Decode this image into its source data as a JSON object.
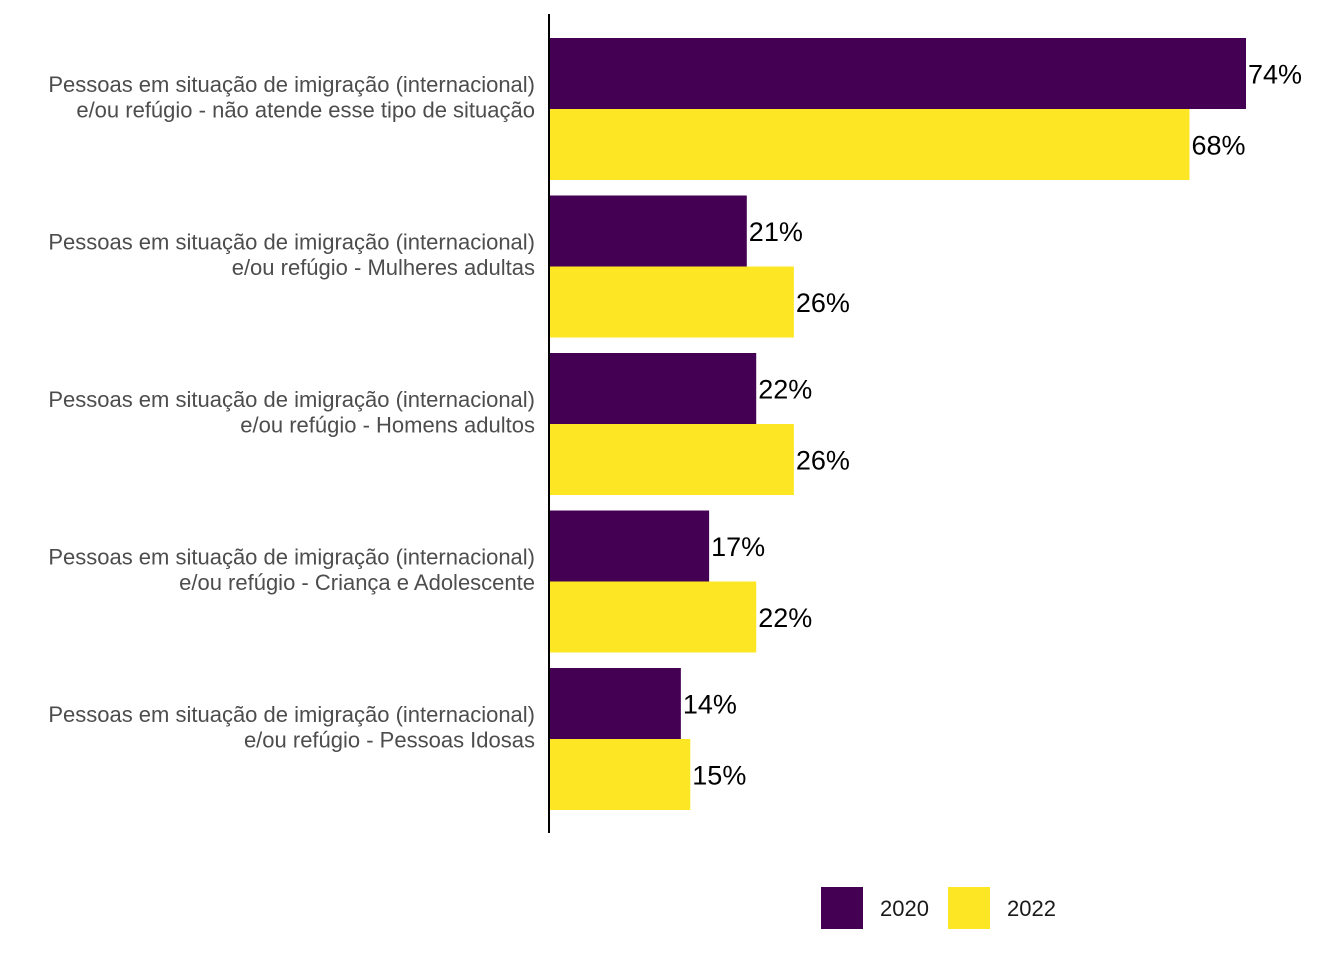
{
  "chart_data": {
    "type": "bar",
    "orientation": "horizontal",
    "categories": [
      [
        "Pessoas em situação de imigração (internacional)",
        "e/ou refúgio - não atende esse tipo de situação"
      ],
      [
        "Pessoas em situação de imigração (internacional)",
        "e/ou refúgio - Mulheres adultas"
      ],
      [
        "Pessoas em situação de imigração (internacional)",
        "e/ou refúgio - Homens adultos"
      ],
      [
        "Pessoas em situação de imigração (internacional)",
        "e/ou refúgio - Criança e Adolescente"
      ],
      [
        "Pessoas em situação de imigração (internacional)",
        "e/ou refúgio - Pessoas Idosas"
      ]
    ],
    "series": [
      {
        "name": "2020",
        "color": "#440154",
        "values": [
          74,
          21,
          22,
          17,
          14
        ],
        "labels": [
          "74%",
          "21%",
          "22%",
          "17%",
          "14%"
        ]
      },
      {
        "name": "2022",
        "color": "#fde725",
        "values": [
          68,
          26,
          26,
          22,
          15
        ],
        "labels": [
          "68%",
          "26%",
          "26%",
          "22%",
          "15%"
        ]
      }
    ],
    "xlim": [
      0,
      78
    ],
    "grid": false,
    "legend_position": "bottom"
  }
}
